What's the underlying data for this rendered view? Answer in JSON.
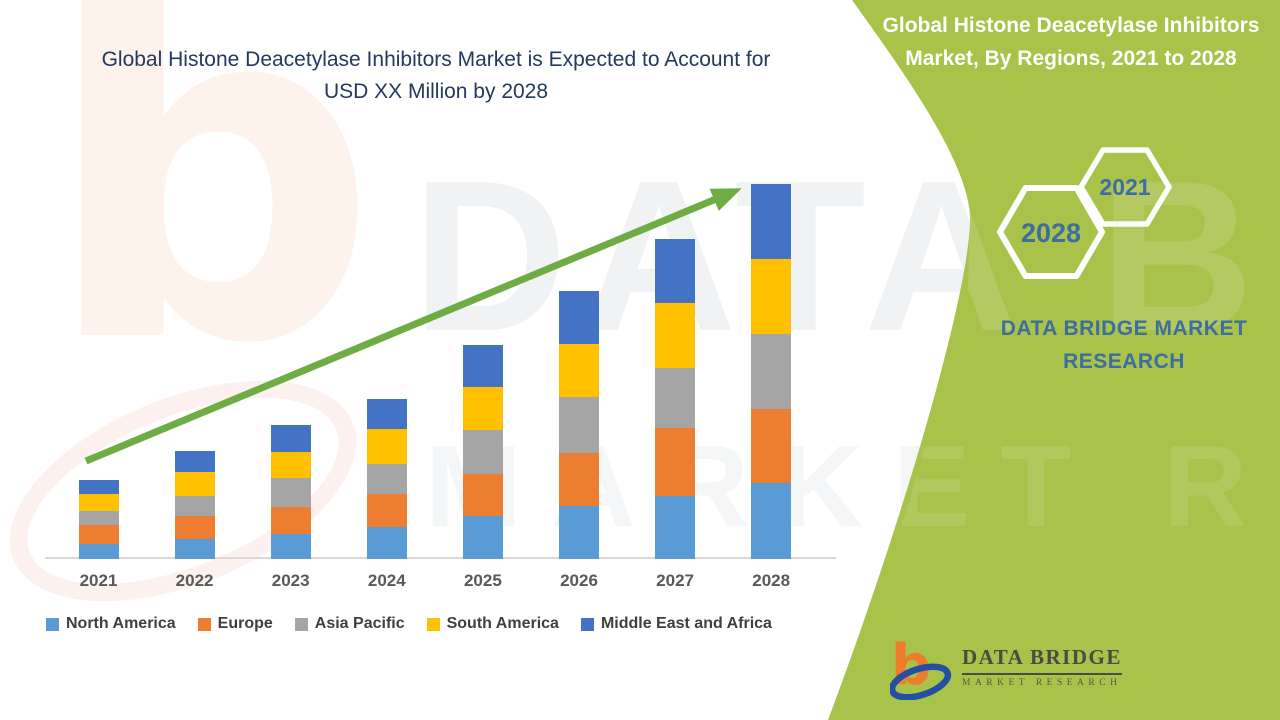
{
  "theme": {
    "panel_green": "#A9C24A",
    "arrow_green": "#6EAC44",
    "title_navy": "#24395E",
    "hex_text_blue": "#3C6E9F",
    "axis_line_gray": "#D9D9D9",
    "x_label_gray": "#595959",
    "legend_text_gray": "#3F3F3F",
    "logo_orange": "#EE7C2B",
    "logo_blue": "#2350A0"
  },
  "header": {
    "title_line1": "Global Histone Deacetylase Inhibitors Market is Expected to Account for",
    "title_line2": "USD XX Million by 2028"
  },
  "side_panel": {
    "title_line1": "Global Histone Deacetylase Inhibitors",
    "title_line2": "Market, By Regions, 2021 to 2028",
    "hexagon_small_label": "2021",
    "hexagon_large_label": "2028",
    "brand_line1": "DATA BRIDGE MARKET",
    "brand_line2": "RESEARCH"
  },
  "watermark": {
    "letter": "b",
    "brand_upper": "DATA BRIDGE",
    "brand_lower": "MARKET RESEARCH"
  },
  "logo": {
    "mark_letter": "b",
    "name": "DATA BRIDGE",
    "sub": "MARKET  RESEARCH"
  },
  "chart_data": {
    "type": "bar",
    "stacked": true,
    "title": "Global Histone Deacetylase Inhibitors Market, By Regions, 2021 to 2028",
    "categories": [
      "2021",
      "2022",
      "2023",
      "2024",
      "2025",
      "2026",
      "2027",
      "2028"
    ],
    "series": [
      {
        "name": "North America",
        "color": "#5B9BD5",
        "values": [
          15,
          20,
          25,
          32,
          43,
          53,
          63,
          76
        ]
      },
      {
        "name": "Europe",
        "color": "#ED7D31",
        "values": [
          19,
          23,
          27,
          33,
          42,
          53,
          68,
          74
        ]
      },
      {
        "name": "Asia Pacific",
        "color": "#A5A5A5",
        "values": [
          14,
          20,
          29,
          30,
          44,
          56,
          60,
          75
        ]
      },
      {
        "name": "South America",
        "color": "#FFC000",
        "values": [
          17,
          24,
          26,
          35,
          43,
          53,
          65,
          75
        ]
      },
      {
        "name": "Middle East and Africa",
        "color": "#4472C4",
        "values": [
          14,
          21,
          27,
          30,
          42,
          53,
          64,
          75
        ]
      }
    ],
    "totals": [
      79,
      108,
      134,
      160,
      214,
      268,
      320,
      375
    ],
    "series_stack_order": "bottom-to-top",
    "value_axis": "hidden",
    "values_note": "relative units; chart displays no numeric value axis (USD XX Million)",
    "legend_position": "bottom",
    "trend_arrow": {
      "direction": "up",
      "from_category": "2021",
      "to_category": "2028",
      "color": "#6EAC44"
    }
  }
}
